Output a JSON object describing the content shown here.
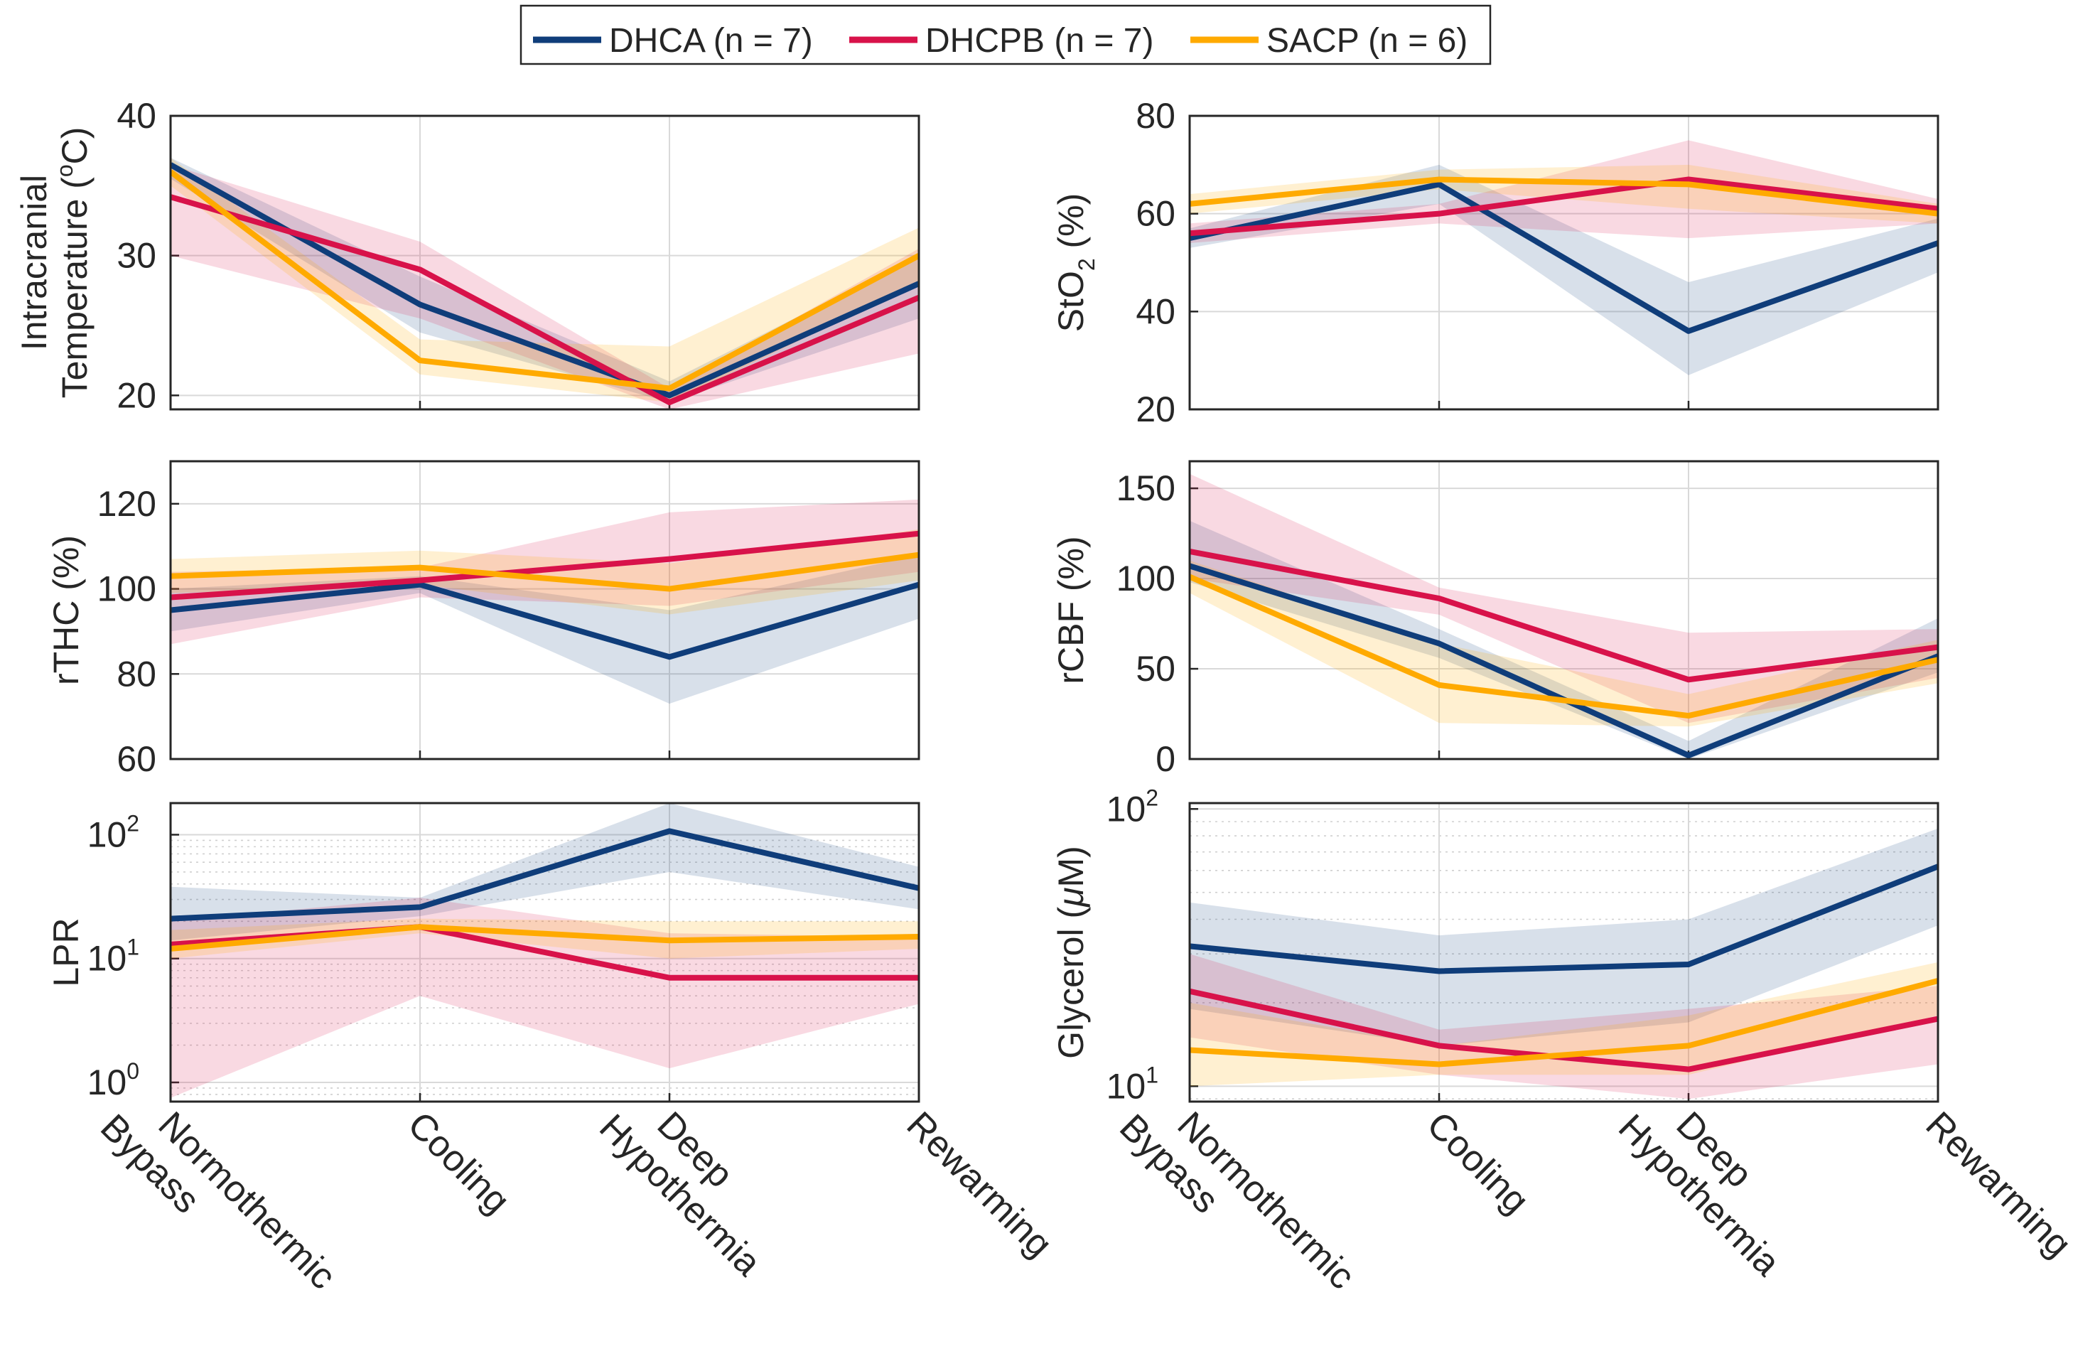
{
  "legend": [
    {
      "name": "DHCA (n = 7)",
      "color": "#0f3d7a"
    },
    {
      "name": "DHCPB (n = 7)",
      "color": "#d8124a"
    },
    {
      "name": "SACP (n = 6)",
      "color": "#ffaa00"
    }
  ],
  "chart_data": [
    {
      "type": "line",
      "ylabel": [
        "Intracranial",
        "Temperature (",
        "o",
        "C)"
      ],
      "ylim": [
        19,
        40
      ],
      "yticks": [
        20,
        30,
        40
      ],
      "yscale": "linear",
      "categories": [
        "Normothermic Bypass",
        "Cooling",
        "Deep Hypothermia",
        "Rewarming"
      ],
      "series": [
        {
          "name": "DHCA",
          "values": [
            36.5,
            26.5,
            20.0,
            28.0
          ],
          "lower": [
            35.5,
            24.5,
            19.5,
            25.5
          ],
          "upper": [
            37.0,
            28.5,
            21.0,
            30.0
          ]
        },
        {
          "name": "DHCPB",
          "values": [
            34.2,
            29.0,
            19.5,
            27.0
          ],
          "lower": [
            30.0,
            25.5,
            19.0,
            23.0
          ],
          "upper": [
            36.5,
            31.0,
            20.5,
            30.5
          ]
        },
        {
          "name": "SACP",
          "values": [
            36.0,
            22.5,
            20.5,
            30.0
          ],
          "lower": [
            35.0,
            21.5,
            19.5,
            28.0
          ],
          "upper": [
            37.0,
            24.0,
            23.5,
            32.0
          ]
        }
      ]
    },
    {
      "type": "line",
      "ylabel": [
        "StO",
        "2",
        " (%)"
      ],
      "ylim": [
        20,
        80
      ],
      "yticks": [
        20,
        40,
        60,
        80
      ],
      "yscale": "linear",
      "categories": [
        "Normothermic Bypass",
        "Cooling",
        "Deep Hypothermia",
        "Rewarming"
      ],
      "series": [
        {
          "name": "DHCA",
          "values": [
            55,
            66,
            36,
            54
          ],
          "lower": [
            53,
            62,
            27,
            48
          ],
          "upper": [
            57,
            70,
            46,
            59
          ]
        },
        {
          "name": "DHCPB",
          "values": [
            56,
            60,
            67,
            61
          ],
          "lower": [
            54,
            58,
            55,
            58
          ],
          "upper": [
            58,
            62,
            75,
            63
          ]
        },
        {
          "name": "SACP",
          "values": [
            62,
            67,
            66,
            60
          ],
          "lower": [
            60,
            65,
            61,
            58
          ],
          "upper": [
            64,
            69,
            70,
            62
          ]
        }
      ]
    },
    {
      "type": "line",
      "ylabel": [
        "rTHC (%)"
      ],
      "ylim": [
        60,
        130
      ],
      "yticks": [
        60,
        80,
        100,
        120
      ],
      "yscale": "linear",
      "categories": [
        "Normothermic Bypass",
        "Cooling",
        "Deep Hypothermia",
        "Rewarming"
      ],
      "series": [
        {
          "name": "DHCA",
          "values": [
            95,
            101,
            84,
            101
          ],
          "lower": [
            90,
            99,
            73,
            93
          ],
          "upper": [
            100,
            103,
            95,
            108
          ]
        },
        {
          "name": "DHCPB",
          "values": [
            98,
            102,
            107,
            113
          ],
          "lower": [
            87,
            98,
            96,
            104
          ],
          "upper": [
            104,
            105,
            118,
            121
          ]
        },
        {
          "name": "SACP",
          "values": [
            103,
            105,
            100,
            108
          ],
          "lower": [
            99,
            101,
            94,
            102
          ],
          "upper": [
            107,
            109,
            106,
            114
          ]
        }
      ]
    },
    {
      "type": "line",
      "ylabel": [
        "rCBF (%)"
      ],
      "ylim": [
        0,
        165
      ],
      "yticks": [
        0,
        50,
        100,
        150
      ],
      "yscale": "linear",
      "categories": [
        "Normothermic Bypass",
        "Cooling",
        "Deep Hypothermia",
        "Rewarming"
      ],
      "series": [
        {
          "name": "DHCA",
          "values": [
            107,
            64,
            2,
            57
          ],
          "lower": [
            98,
            56,
            0,
            48
          ],
          "upper": [
            132,
            72,
            10,
            78
          ]
        },
        {
          "name": "DHCPB",
          "values": [
            115,
            89,
            44,
            62
          ],
          "lower": [
            100,
            80,
            20,
            45
          ],
          "upper": [
            158,
            95,
            70,
            72
          ]
        },
        {
          "name": "SACP",
          "values": [
            101,
            41,
            24,
            55
          ],
          "lower": [
            92,
            20,
            18,
            42
          ],
          "upper": [
            110,
            64,
            36,
            66
          ]
        }
      ]
    },
    {
      "type": "line",
      "ylabel": [
        "LPR"
      ],
      "ylim": [
        0.7,
        180
      ],
      "yticks": [
        1,
        10,
        100
      ],
      "ytick_labels": [
        [
          "10",
          "0"
        ],
        [
          "10",
          "1"
        ],
        [
          "10",
          "2"
        ]
      ],
      "yscale": "log",
      "categories": [
        "Normothermic Bypass",
        "Cooling",
        "Deep Hypothermia",
        "Rewarming"
      ],
      "series": [
        {
          "name": "DHCA",
          "values": [
            21,
            26,
            107,
            37
          ],
          "lower": [
            14,
            22,
            50,
            25
          ],
          "upper": [
            38,
            31,
            180,
            55
          ]
        },
        {
          "name": "DHCPB",
          "values": [
            13,
            18,
            7,
            7
          ],
          "lower": [
            0.75,
            5,
            1.3,
            4.3
          ],
          "upper": [
            20,
            31,
            16,
            15
          ]
        },
        {
          "name": "SACP",
          "values": [
            12,
            18,
            14,
            15
          ],
          "lower": [
            10,
            16,
            10,
            12
          ],
          "upper": [
            17,
            21,
            20,
            20
          ]
        }
      ]
    },
    {
      "type": "line",
      "ylabel": [
        "Glycerol (",
        "μ",
        "M)"
      ],
      "ylim": [
        8.8,
        105
      ],
      "yticks": [
        10,
        100
      ],
      "ytick_labels": [
        [
          "10",
          "1"
        ],
        [
          "10",
          "2"
        ]
      ],
      "yscale": "log",
      "categories": [
        "Normothermic Bypass",
        "Cooling",
        "Deep Hypothermia",
        "Rewarming"
      ],
      "series": [
        {
          "name": "DHCA",
          "values": [
            32,
            26,
            27.5,
            62
          ],
          "lower": [
            19,
            14,
            17,
            38
          ],
          "upper": [
            46,
            35,
            40,
            85
          ]
        },
        {
          "name": "DHCPB",
          "values": [
            22,
            14,
            11.5,
            17.5
          ],
          "lower": [
            15,
            11,
            9,
            12
          ],
          "upper": [
            30,
            16,
            19,
            23
          ]
        },
        {
          "name": "SACP",
          "values": [
            13.5,
            12,
            14,
            24
          ],
          "lower": [
            10,
            11,
            11,
            18
          ],
          "upper": [
            20,
            14,
            18,
            28
          ]
        }
      ]
    }
  ]
}
